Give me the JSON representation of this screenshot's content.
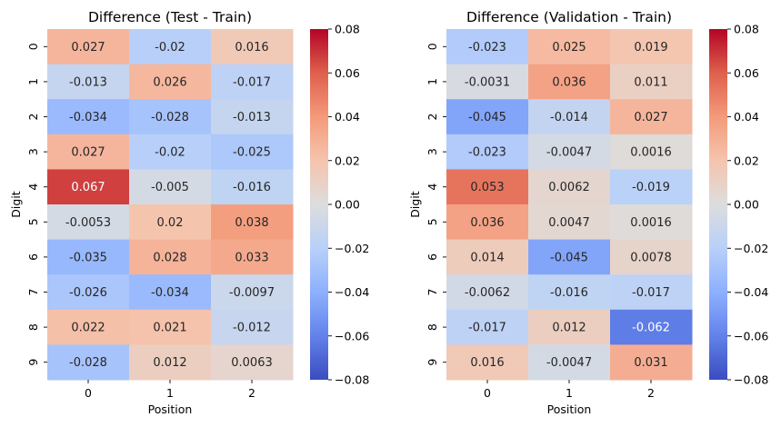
{
  "chart_data": [
    {
      "type": "heatmap",
      "title": "Difference (Test - Train)",
      "xlabel": "Position",
      "ylabel": "Digit",
      "x_categories": [
        "0",
        "1",
        "2"
      ],
      "y_categories": [
        "0",
        "1",
        "2",
        "3",
        "4",
        "5",
        "6",
        "7",
        "8",
        "9"
      ],
      "values": [
        [
          0.027,
          -0.02,
          0.016
        ],
        [
          -0.013,
          0.026,
          -0.017
        ],
        [
          -0.034,
          -0.028,
          -0.013
        ],
        [
          0.027,
          -0.02,
          -0.025
        ],
        [
          0.067,
          -0.005,
          -0.016
        ],
        [
          -0.0053,
          0.02,
          0.038
        ],
        [
          -0.035,
          0.028,
          0.033
        ],
        [
          -0.026,
          -0.034,
          -0.0097
        ],
        [
          0.022,
          0.021,
          -0.012
        ],
        [
          -0.028,
          0.012,
          0.0063
        ]
      ],
      "annotations": [
        [
          "0.027",
          "-0.02",
          "0.016"
        ],
        [
          "-0.013",
          "0.026",
          "-0.017"
        ],
        [
          "-0.034",
          "-0.028",
          "-0.013"
        ],
        [
          "0.027",
          "-0.02",
          "-0.025"
        ],
        [
          "0.067",
          "-0.005",
          "-0.016"
        ],
        [
          "-0.0053",
          "0.02",
          "0.038"
        ],
        [
          "-0.035",
          "0.028",
          "0.033"
        ],
        [
          "-0.026",
          "-0.034",
          "-0.0097"
        ],
        [
          "0.022",
          "0.021",
          "-0.012"
        ],
        [
          "-0.028",
          "0.012",
          "0.0063"
        ]
      ],
      "colormap": "coolwarm",
      "vmin": -0.08,
      "vmax": 0.08,
      "colorbar_ticks": [
        "0.08",
        "0.06",
        "0.04",
        "0.02",
        "0.00",
        "−0.02",
        "−0.04",
        "−0.06",
        "−0.08"
      ]
    },
    {
      "type": "heatmap",
      "title": "Difference (Validation - Train)",
      "xlabel": "Position",
      "ylabel": "Digit",
      "x_categories": [
        "0",
        "1",
        "2"
      ],
      "y_categories": [
        "0",
        "1",
        "2",
        "3",
        "4",
        "5",
        "6",
        "7",
        "8",
        "9"
      ],
      "values": [
        [
          -0.023,
          0.025,
          0.019
        ],
        [
          -0.0031,
          0.036,
          0.011
        ],
        [
          -0.045,
          -0.014,
          0.027
        ],
        [
          -0.023,
          -0.0047,
          0.0016
        ],
        [
          0.053,
          0.0062,
          -0.019
        ],
        [
          0.036,
          0.0047,
          0.0016
        ],
        [
          0.014,
          -0.045,
          0.0078
        ],
        [
          -0.0062,
          -0.016,
          -0.017
        ],
        [
          -0.017,
          0.012,
          -0.062
        ],
        [
          0.016,
          -0.0047,
          0.031
        ]
      ],
      "annotations": [
        [
          "-0.023",
          "0.025",
          "0.019"
        ],
        [
          "-0.0031",
          "0.036",
          "0.011"
        ],
        [
          "-0.045",
          "-0.014",
          "0.027"
        ],
        [
          "-0.023",
          "-0.0047",
          "0.0016"
        ],
        [
          "0.053",
          "0.0062",
          "-0.019"
        ],
        [
          "0.036",
          "0.0047",
          "0.0016"
        ],
        [
          "0.014",
          "-0.045",
          "0.0078"
        ],
        [
          "-0.0062",
          "-0.016",
          "-0.017"
        ],
        [
          "-0.017",
          "0.012",
          "-0.062"
        ],
        [
          "0.016",
          "-0.0047",
          "0.031"
        ]
      ],
      "colormap": "coolwarm",
      "vmin": -0.08,
      "vmax": 0.08,
      "colorbar_ticks": [
        "0.08",
        "0.06",
        "0.04",
        "0.02",
        "0.00",
        "−0.02",
        "−0.04",
        "−0.06",
        "−0.08"
      ]
    }
  ]
}
